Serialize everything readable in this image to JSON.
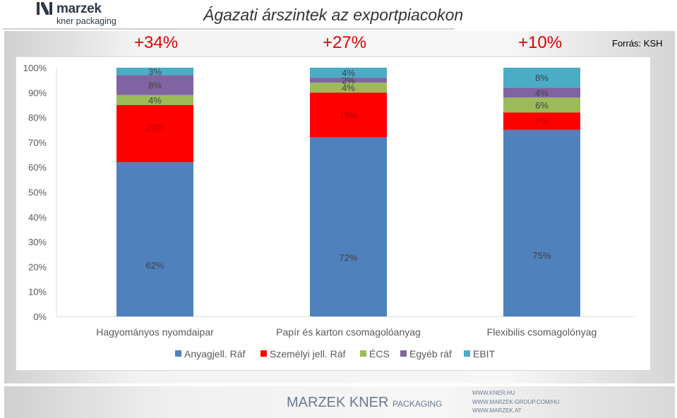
{
  "header": {
    "logo_name": "marzek",
    "logo_sub": "kner packaging",
    "title": "Ágazati árszintek az exportpiacokon"
  },
  "source_label": "Forrás: KSH",
  "growth_labels": [
    "+34%",
    "+27%",
    "+10%"
  ],
  "colors": {
    "anyag": "#4f81bd",
    "szemelyi": "#ff0000",
    "ecs": "#9bbb59",
    "egyeb": "#8064a2",
    "ebit": "#4bacc6",
    "growth_text": "#e00000"
  },
  "chart_data": {
    "type": "bar",
    "stacked": true,
    "categories": [
      "Hagyományos nyomdaipar",
      "Papír és karton csomagolóanyag",
      "Flexibilis csomagolónyag"
    ],
    "series": [
      {
        "name": "Anyagjell. Ráf",
        "values": [
          62,
          72,
          75
        ],
        "labels": [
          "62%",
          "72%",
          "75%"
        ]
      },
      {
        "name": "Személyi jell. Ráf",
        "values": [
          23,
          18,
          7
        ],
        "labels": [
          "23%",
          "18%",
          "7%"
        ]
      },
      {
        "name": "ÉCS",
        "values": [
          4,
          4,
          6
        ],
        "labels": [
          "4%",
          "4%",
          "6%"
        ]
      },
      {
        "name": "Egyéb ráf",
        "values": [
          8,
          2,
          4
        ],
        "labels": [
          "8%",
          "2%",
          "4%"
        ]
      },
      {
        "name": "EBIT",
        "values": [
          3,
          4,
          8
        ],
        "labels": [
          "3%",
          "4%",
          "8%"
        ]
      }
    ],
    "y_ticks": [
      "0%",
      "10%",
      "20%",
      "30%",
      "40%",
      "50%",
      "60%",
      "70%",
      "80%",
      "90%",
      "100%"
    ],
    "ylim": [
      0,
      100
    ],
    "grid": false,
    "legend_position": "bottom"
  },
  "footer": {
    "brand_main": "MARZEK KNER",
    "brand_small": "PACKAGING",
    "links": [
      "WWW.KNER.HU",
      "WWW.MARZEK-GROUP.COM/HU",
      "WWW.MARZEK.AT"
    ]
  }
}
